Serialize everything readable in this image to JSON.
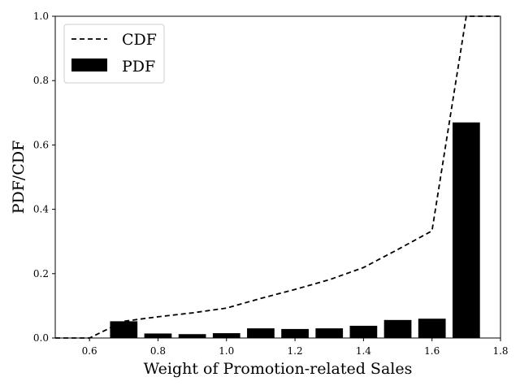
{
  "chart_data": {
    "type": "bar",
    "xlabel": "Weight of Promotion-related Sales",
    "ylabel": "PDF/CDF",
    "xlim": [
      0.5,
      1.8
    ],
    "ylim": [
      0.0,
      1.0
    ],
    "xticks": [
      "0.6",
      "0.8",
      "1.0",
      "1.2",
      "1.4",
      "1.6",
      "1.8"
    ],
    "yticks": [
      "0.0",
      "0.2",
      "0.4",
      "0.6",
      "0.8",
      "1.0"
    ],
    "grid": false,
    "legend_position": "top-left",
    "bar_width": 0.08,
    "series": [
      {
        "name": "CDF",
        "kind": "line",
        "style": "dashed",
        "color": "#000000",
        "x": [
          0.5,
          0.6,
          0.7,
          0.8,
          0.9,
          1.0,
          1.1,
          1.2,
          1.3,
          1.4,
          1.5,
          1.6,
          1.7,
          1.8
        ],
        "values": [
          0.0,
          0.0,
          0.052,
          0.066,
          0.078,
          0.093,
          0.123,
          0.151,
          0.181,
          0.219,
          0.275,
          0.333,
          1.0,
          1.0
        ]
      },
      {
        "name": "PDF",
        "kind": "bar",
        "color": "#000000",
        "x": [
          0.7,
          0.8,
          0.9,
          1.0,
          1.1,
          1.2,
          1.3,
          1.4,
          1.5,
          1.6,
          1.7
        ],
        "values": [
          0.052,
          0.014,
          0.012,
          0.015,
          0.03,
          0.028,
          0.03,
          0.038,
          0.056,
          0.06,
          0.67
        ]
      }
    ]
  }
}
